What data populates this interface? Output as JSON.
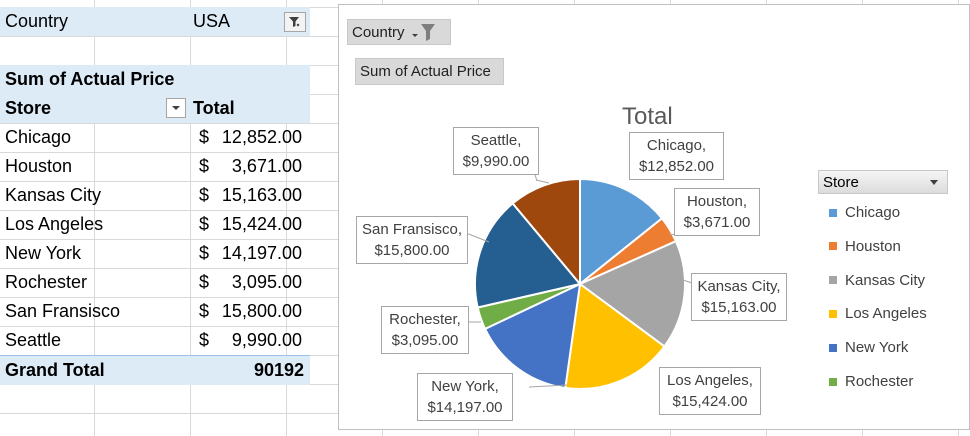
{
  "pivot": {
    "filter": {
      "label": "Country",
      "value": "USA"
    },
    "values_header": "Sum of Actual Price",
    "row_header": "Store",
    "col_header": "Total",
    "rows": [
      {
        "store": "Chicago",
        "sym": "$",
        "amount": "12,852.00"
      },
      {
        "store": "Houston",
        "sym": "$",
        "amount": "3,671.00"
      },
      {
        "store": "Kansas City",
        "sym": "$",
        "amount": "15,163.00"
      },
      {
        "store": "Los Angeles",
        "sym": "$",
        "amount": "15,424.00"
      },
      {
        "store": "New York",
        "sym": "$",
        "amount": "14,197.00"
      },
      {
        "store": "Rochester",
        "sym": "$",
        "amount": "3,095.00"
      },
      {
        "store": "San Fransisco",
        "sym": "$",
        "amount": "15,800.00"
      },
      {
        "store": "Seattle",
        "sym": "$",
        "amount": "9,990.00"
      }
    ],
    "grand_total_label": "Grand Total",
    "grand_total_value": "90192"
  },
  "chart": {
    "country_button": "Country",
    "values_button": "Sum of Actual Price",
    "legend_title": "Store"
  },
  "chart_data": {
    "type": "pie",
    "title": "Total",
    "categories": [
      "Chicago",
      "Houston",
      "Kansas City",
      "Los Angeles",
      "New York",
      "Rochester",
      "San Fransisco",
      "Seattle"
    ],
    "values": [
      12852,
      3671,
      15163,
      15424,
      14197,
      3095,
      15800,
      9990
    ],
    "colors": [
      "#5b9bd5",
      "#ed7d31",
      "#a5a5a5",
      "#ffc000",
      "#4472c4",
      "#70ad47",
      "#255e91",
      "#9e480e"
    ],
    "data_labels": [
      [
        "Chicago,",
        "$12,852.00"
      ],
      [
        "Houston,",
        "$3,671.00"
      ],
      [
        "Kansas City,",
        "$15,163.00"
      ],
      [
        "Los Angeles,",
        "$15,424.00"
      ],
      [
        "New York,",
        "$14,197.00"
      ],
      [
        "Rochester,",
        "$3,095.00"
      ],
      [
        "San Fransisco,",
        "$15,800.00"
      ],
      [
        "Seattle,",
        "$9,990.00"
      ]
    ],
    "legend": [
      "Chicago",
      "Houston",
      "Kansas City",
      "Los Angeles",
      "New York",
      "Rochester"
    ],
    "legend_position": "right"
  }
}
